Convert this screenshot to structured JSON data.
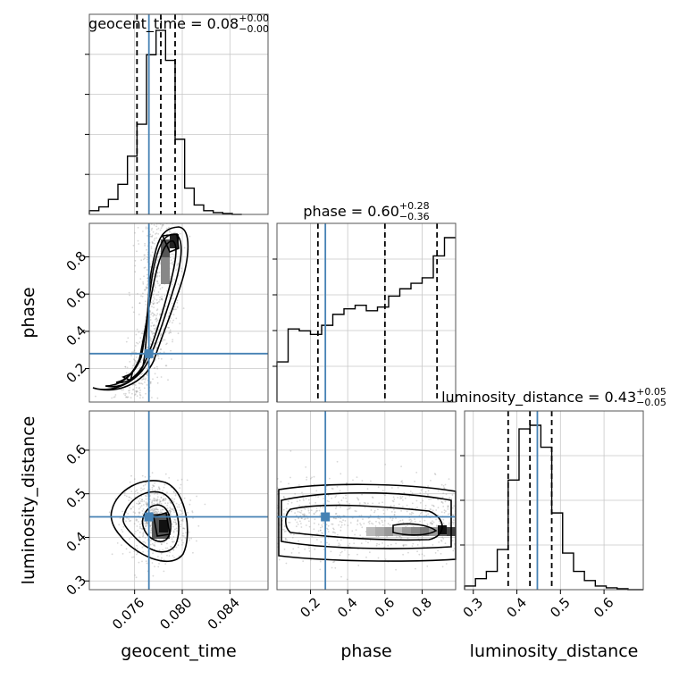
{
  "chart_data": {
    "type": "corner",
    "parameters": [
      "geocent_time",
      "phase",
      "luminosity_distance"
    ],
    "truths": {
      "geocent_time": 0.0772,
      "phase": 0.28,
      "luminosity_distance": 0.447
    },
    "colors": {
      "truth": "#4682b4",
      "contour": "#000000",
      "grid": "#c8c8c8",
      "scatter": "#8c8c8c"
    },
    "titles": [
      {
        "param": "geocent_time",
        "text": "geocent_time = 0.08",
        "sup": "+0.00",
        "sub": "−0.00"
      },
      {
        "param": "phase",
        "text": "phase = 0.60",
        "sup": "+0.28",
        "sub": "−0.36"
      },
      {
        "param": "luminosity_distance",
        "text": "luminosity_distance = 0.43",
        "sup": "+0.05",
        "sub": "−0.05"
      }
    ],
    "axis_labels": {
      "x": [
        "geocent_time",
        "phase",
        "luminosity_distance"
      ],
      "y": [
        "phase",
        "luminosity_distance"
      ]
    },
    "ranges": {
      "geocent_time": [
        0.0722,
        0.0872
      ],
      "phase": [
        0.02,
        0.98
      ],
      "luminosity_distance": [
        0.28,
        0.69
      ]
    },
    "ticks": {
      "geocent_time": {
        "values": [
          0.076,
          0.08,
          0.084
        ],
        "labels": [
          "0.076",
          "0.080",
          "0.084"
        ]
      },
      "phase": {
        "values": [
          0.2,
          0.4,
          0.6,
          0.8
        ],
        "labels": [
          "0.2",
          "0.4",
          "0.6",
          "0.8"
        ]
      },
      "luminosity_distance_x": {
        "values": [
          0.3,
          0.4,
          0.5,
          0.6
        ],
        "labels": [
          "0.3",
          "0.4",
          "0.5",
          "0.6"
        ]
      },
      "luminosity_distance_y": {
        "values": [
          0.3,
          0.4,
          0.5,
          0.6
        ],
        "labels": [
          "0.3",
          "0.4",
          "0.5",
          "0.6"
        ]
      }
    },
    "histograms": {
      "geocent_time": {
        "edges": [
          0.0722,
          0.073,
          0.0738,
          0.0746,
          0.0754,
          0.0762,
          0.077,
          0.0778,
          0.0786,
          0.0794,
          0.0802,
          0.081,
          0.0818,
          0.0826,
          0.0834,
          0.0842,
          0.085
        ],
        "counts": [
          0.02,
          0.04,
          0.08,
          0.16,
          0.31,
          0.48,
          0.85,
          0.98,
          0.82,
          0.4,
          0.14,
          0.05,
          0.02,
          0.01,
          0.005,
          0.0
        ],
        "quantiles": [
          0.0762,
          0.0782,
          0.0794
        ]
      },
      "phase": {
        "edges": [
          0.02,
          0.08,
          0.14,
          0.2,
          0.26,
          0.32,
          0.38,
          0.44,
          0.5,
          0.56,
          0.62,
          0.68,
          0.74,
          0.8,
          0.86,
          0.92,
          0.98
        ],
        "counts": [
          0.22,
          0.4,
          0.39,
          0.37,
          0.42,
          0.48,
          0.51,
          0.53,
          0.5,
          0.52,
          0.58,
          0.62,
          0.65,
          0.68,
          0.8,
          0.9
        ],
        "quantiles": [
          0.24,
          0.6,
          0.88
        ]
      },
      "luminosity_distance": {
        "edges": [
          0.28,
          0.305,
          0.33,
          0.355,
          0.38,
          0.405,
          0.43,
          0.455,
          0.48,
          0.505,
          0.53,
          0.555,
          0.58,
          0.605,
          0.63,
          0.655,
          0.69
        ],
        "counts": [
          0.02,
          0.06,
          0.1,
          0.22,
          0.6,
          0.88,
          0.9,
          0.78,
          0.42,
          0.2,
          0.1,
          0.05,
          0.02,
          0.01,
          0.005,
          0.0
        ],
        "quantiles": [
          0.38,
          0.43,
          0.48
        ]
      }
    },
    "grid": true
  }
}
